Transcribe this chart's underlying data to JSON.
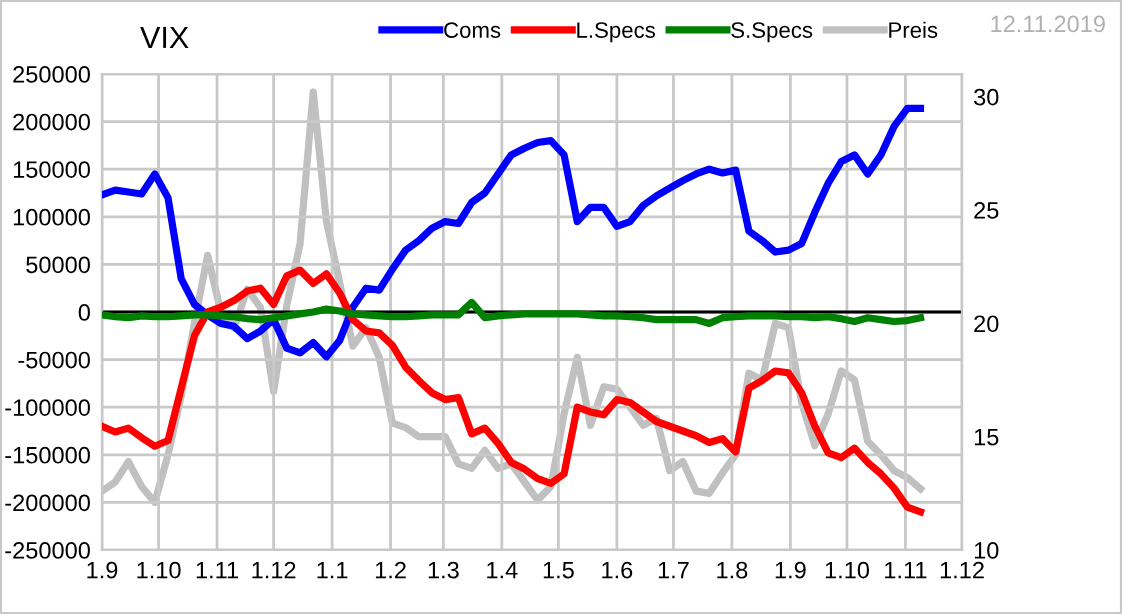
{
  "chart_data": {
    "type": "line",
    "title": "VIX",
    "annotations": [
      "12.11.2019"
    ],
    "x": [
      "2018-09-01",
      "2018-09-08",
      "2018-09-15",
      "2018-09-22",
      "2018-09-29",
      "2018-10-06",
      "2018-10-13",
      "2018-10-20",
      "2018-10-27",
      "2018-11-03",
      "2018-11-10",
      "2018-11-17",
      "2018-11-24",
      "2018-12-01",
      "2018-12-08",
      "2018-12-15",
      "2018-12-22",
      "2018-12-29",
      "2019-01-05",
      "2019-01-12",
      "2019-01-19",
      "2019-01-26",
      "2019-02-02",
      "2019-02-09",
      "2019-02-16",
      "2019-02-23",
      "2019-03-02",
      "2019-03-09",
      "2019-03-16",
      "2019-03-23",
      "2019-03-30",
      "2019-04-06",
      "2019-04-13",
      "2019-04-20",
      "2019-04-27",
      "2019-05-04",
      "2019-05-11",
      "2019-05-18",
      "2019-05-25",
      "2019-06-01",
      "2019-06-08",
      "2019-06-15",
      "2019-06-22",
      "2019-06-29",
      "2019-07-06",
      "2019-07-13",
      "2019-07-20",
      "2019-07-27",
      "2019-08-03",
      "2019-08-10",
      "2019-08-17",
      "2019-08-24",
      "2019-08-31",
      "2019-09-07",
      "2019-09-14",
      "2019-09-21",
      "2019-09-28",
      "2019-10-05",
      "2019-10-12",
      "2019-10-19",
      "2019-10-26",
      "2019-11-02",
      "2019-11-09"
    ],
    "series": [
      {
        "name": "Coms",
        "color": "#0000ff",
        "values": [
          123000,
          128000,
          126000,
          124000,
          145000,
          120000,
          35000,
          8000,
          -3000,
          -12000,
          -15000,
          -28000,
          -20000,
          -8000,
          -38000,
          -43000,
          -32000,
          -47000,
          -30000,
          5000,
          25000,
          23000,
          45000,
          65000,
          75000,
          88000,
          95000,
          93000,
          115000,
          125000,
          145000,
          165000,
          172000,
          178000,
          180000,
          165000,
          95000,
          110000,
          110000,
          90000,
          95000,
          112000,
          122000,
          130000,
          138000,
          145000,
          150000,
          146000,
          149000,
          85000,
          75000,
          63000,
          65000,
          72000,
          105000,
          135000,
          158000,
          165000,
          145000,
          165000,
          195000,
          214000,
          214000
        ]
      },
      {
        "name": "L.Specs",
        "color": "#ff0000",
        "values": [
          -120000,
          -126000,
          -122000,
          -132000,
          -141000,
          -135000,
          -80000,
          -25000,
          0,
          5000,
          12000,
          22000,
          25000,
          8000,
          38000,
          44000,
          30000,
          40000,
          20000,
          -8000,
          -20000,
          -22000,
          -35000,
          -58000,
          -72000,
          -85000,
          -92000,
          -90000,
          -128000,
          -122000,
          -138000,
          -158000,
          -165000,
          -175000,
          -180000,
          -170000,
          -100000,
          -105000,
          -108000,
          -92000,
          -95000,
          -105000,
          -115000,
          -120000,
          -125000,
          -130000,
          -137000,
          -133000,
          -147000,
          -80000,
          -72000,
          -62000,
          -64000,
          -85000,
          -120000,
          -148000,
          -153000,
          -143000,
          -158000,
          -170000,
          -185000,
          -205000,
          -210000
        ]
      },
      {
        "name": "S.Specs",
        "color": "#008000",
        "values": [
          -3000,
          -5000,
          -6000,
          -4000,
          -5000,
          -5000,
          -4000,
          -3000,
          -3000,
          -4000,
          -5000,
          -7000,
          -8000,
          -6000,
          -4000,
          -2000,
          0,
          3000,
          1000,
          -2000,
          -3000,
          -4000,
          -5000,
          -5000,
          -4000,
          -3000,
          -3000,
          -3000,
          10000,
          -6000,
          -4000,
          -3000,
          -2000,
          -2000,
          -2000,
          -2000,
          -2000,
          -3000,
          -4000,
          -4000,
          -5000,
          -6000,
          -8000,
          -8000,
          -8000,
          -8000,
          -12000,
          -6000,
          -5000,
          -4000,
          -4000,
          -4000,
          -5000,
          -5000,
          -6000,
          -5000,
          -7000,
          -10000,
          -6000,
          -8000,
          -10000,
          -9000,
          -6000
        ]
      },
      {
        "name": "Preis",
        "color": "#c0c0c0",
        "axis": "y2",
        "values": [
          12.6,
          13.0,
          13.9,
          12.8,
          12.1,
          14.2,
          16.8,
          20.0,
          23.0,
          20.5,
          19.8,
          21.5,
          20.7,
          17.0,
          20.8,
          23.5,
          30.2,
          24.5,
          21.8,
          19.0,
          19.8,
          18.5,
          15.6,
          15.4,
          15.0,
          15.0,
          15.0,
          13.8,
          13.6,
          14.4,
          13.6,
          13.8,
          13.0,
          12.2,
          12.8,
          16.0,
          18.5,
          15.5,
          17.2,
          17.1,
          16.3,
          15.5,
          15.8,
          13.5,
          13.9,
          12.6,
          12.5,
          13.4,
          14.2,
          17.8,
          17.5,
          20.0,
          19.8,
          16.5,
          14.6,
          16.0,
          17.9,
          17.5,
          14.8,
          14.2,
          13.5,
          13.2,
          12.7
        ]
      }
    ],
    "xlim": [
      "2018-09-01",
      "2019-12-01"
    ],
    "xticks": [
      {
        "value": "2018-09-01",
        "label": "1.9"
      },
      {
        "value": "2018-10-01",
        "label": "1.10"
      },
      {
        "value": "2018-11-01",
        "label": "1.11"
      },
      {
        "value": "2018-12-01",
        "label": "1.12"
      },
      {
        "value": "2019-01-01",
        "label": "1.1"
      },
      {
        "value": "2019-02-01",
        "label": "1.2"
      },
      {
        "value": "2019-03-01",
        "label": "1.3"
      },
      {
        "value": "2019-04-01",
        "label": "1.4"
      },
      {
        "value": "2019-05-01",
        "label": "1.5"
      },
      {
        "value": "2019-06-01",
        "label": "1.6"
      },
      {
        "value": "2019-07-01",
        "label": "1.7"
      },
      {
        "value": "2019-08-01",
        "label": "1.8"
      },
      {
        "value": "2019-09-01",
        "label": "1.9"
      },
      {
        "value": "2019-10-01",
        "label": "1.10"
      },
      {
        "value": "2019-11-01",
        "label": "1.11"
      },
      {
        "value": "2019-12-01",
        "label": "1.12"
      }
    ],
    "ylim": [
      -250000,
      250000
    ],
    "yticks": [
      -250000,
      -200000,
      -150000,
      -100000,
      -50000,
      0,
      50000,
      100000,
      150000,
      200000,
      250000
    ],
    "y2lim": [
      10,
      31
    ],
    "y2ticks": [
      10,
      15,
      20,
      25,
      30
    ],
    "ref_lines": [
      {
        "axis": "y",
        "value": 0,
        "color": "#000000"
      }
    ],
    "grid": true,
    "legend": "top",
    "line_style": "solid"
  }
}
